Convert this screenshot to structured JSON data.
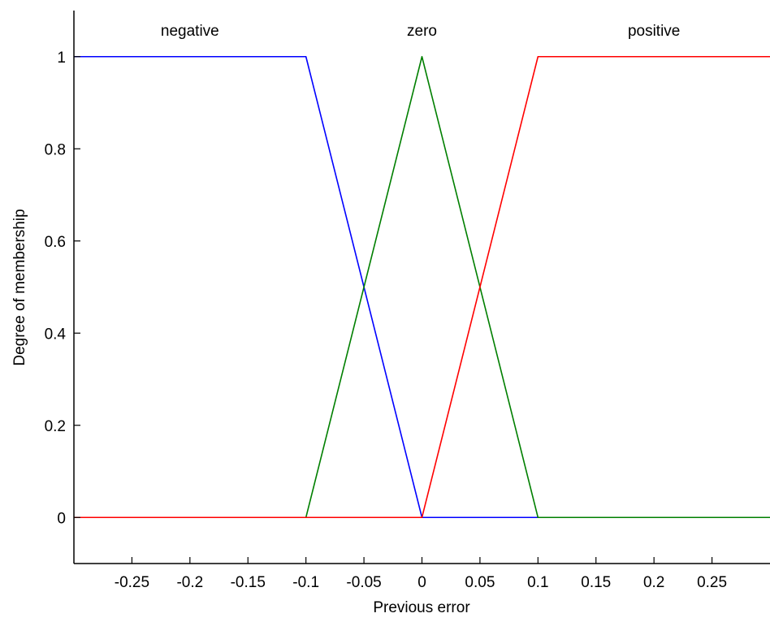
{
  "chart_data": {
    "type": "line",
    "title": "",
    "xlabel": "Previous error",
    "ylabel": "Degree of membership",
    "xlim": [
      -0.3,
      0.3
    ],
    "ylim": [
      -0.1,
      1.1
    ],
    "xticks": [
      -0.25,
      -0.2,
      -0.15,
      -0.1,
      -0.05,
      0,
      0.05,
      0.1,
      0.15,
      0.2,
      0.25
    ],
    "xtick_labels": [
      "-0.25",
      "-0.2",
      "-0.15",
      "-0.1",
      "-0.05",
      "0",
      "0.05",
      "0.1",
      "0.15",
      "0.2",
      "0.25"
    ],
    "yticks": [
      0,
      0.2,
      0.4,
      0.6,
      0.8,
      1
    ],
    "ytick_labels": [
      "0",
      "0.2",
      "0.4",
      "0.6",
      "0.8",
      "1"
    ],
    "grid": false,
    "legend": "none",
    "series": [
      {
        "name": "negative",
        "color": "#0000ff",
        "x": [
          -0.3,
          -0.1,
          0,
          0.3
        ],
        "y": [
          1,
          1,
          0,
          0
        ]
      },
      {
        "name": "zero",
        "color": "#007f00",
        "x": [
          -0.3,
          -0.1,
          0,
          0.1,
          0.3
        ],
        "y": [
          0,
          0,
          1,
          0,
          0
        ]
      },
      {
        "name": "positive",
        "color": "#ff0000",
        "x": [
          -0.3,
          0,
          0.1,
          0.3
        ],
        "y": [
          0,
          0,
          1,
          1
        ]
      }
    ],
    "series_labels": [
      {
        "text": "negative",
        "x": -0.2,
        "y": 1.045
      },
      {
        "text": "zero",
        "x": 0,
        "y": 1.045
      },
      {
        "text": "positive",
        "x": 0.2,
        "y": 1.045
      }
    ]
  }
}
